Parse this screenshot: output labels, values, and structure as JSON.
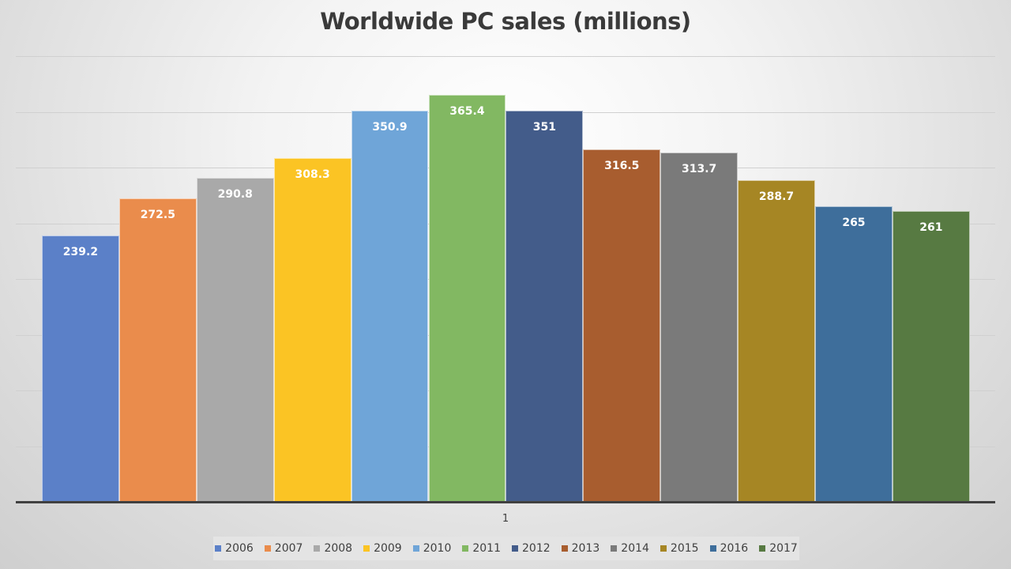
{
  "chart_data": {
    "type": "bar",
    "title": "Worldwide PC sales (millions)",
    "xlabel": "",
    "ylabel": "",
    "categories": [
      "1"
    ],
    "ylim": [
      0,
      400
    ],
    "y_gridlines": [
      50,
      100,
      150,
      200,
      250,
      300,
      350,
      400
    ],
    "y_tick_labels_visible": false,
    "grid": true,
    "legend_position": "bottom",
    "series": [
      {
        "name": "2006",
        "values": [
          239.2
        ],
        "color": "#5b80c8"
      },
      {
        "name": "2007",
        "values": [
          272.5
        ],
        "color": "#ea8c4c"
      },
      {
        "name": "2008",
        "values": [
          290.8
        ],
        "color": "#a9a9a9"
      },
      {
        "name": "2009",
        "values": [
          308.3
        ],
        "color": "#fbc424"
      },
      {
        "name": "2010",
        "values": [
          350.9
        ],
        "color": "#6fa5d8"
      },
      {
        "name": "2011",
        "values": [
          365.4
        ],
        "color": "#82b862"
      },
      {
        "name": "2012",
        "values": [
          351
        ],
        "color": "#435c8a"
      },
      {
        "name": "2013",
        "values": [
          316.5
        ],
        "color": "#a85d2f"
      },
      {
        "name": "2014",
        "values": [
          313.7
        ],
        "color": "#7a7a7a"
      },
      {
        "name": "2015",
        "values": [
          288.7
        ],
        "color": "#a68624"
      },
      {
        "name": "2016",
        "values": [
          265
        ],
        "color": "#3e6e9b"
      },
      {
        "name": "2017",
        "values": [
          261
        ],
        "color": "#577a42"
      }
    ]
  },
  "labels": {
    "title": "Worldwide PC sales (millions)",
    "x_tick": "1"
  }
}
